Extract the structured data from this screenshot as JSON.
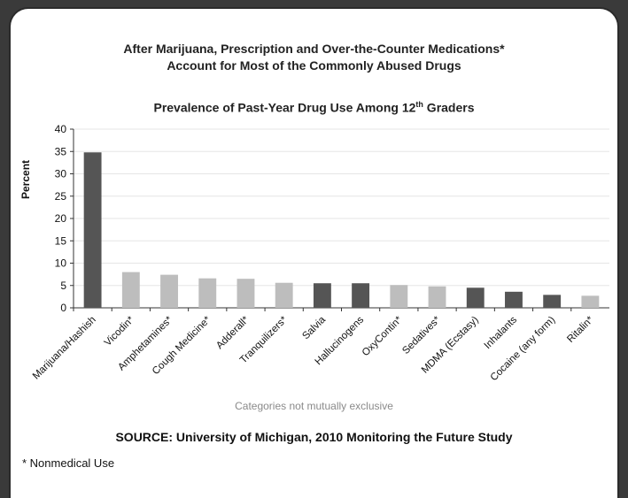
{
  "titles": {
    "line1": "After Marijuana, Prescription and Over-the-Counter Medications*",
    "line2": "Account for Most of the Commonly Abused Drugs",
    "subtitle_prefix": "Prevalence of Past-Year Drug Use Among 12",
    "subtitle_sup": "th",
    "subtitle_suffix": " Graders"
  },
  "note": "Categories not mutually exclusive",
  "source": "SOURCE: University of Michigan, 2010 Monitoring the Future Study",
  "footnote": "* Nonmedical Use",
  "colors": {
    "dark_bar": "#555555",
    "light_bar": "#bdbdbd",
    "grid": "#e6e6e6",
    "axis": "#333333"
  },
  "chart_data": {
    "type": "bar",
    "ylabel": "Percent",
    "ylim": [
      0,
      40
    ],
    "yticks": [
      0,
      5,
      10,
      15,
      20,
      25,
      30,
      35,
      40
    ],
    "grid": true,
    "categories": [
      "Marijuana/Hashish",
      "Vicodin*",
      "Amphetamines*",
      "Cough Medicine*",
      "Adderall*",
      "Tranquilizers*",
      "Salvia",
      "Hallucinogens",
      "OxyContin*",
      "Sedatives*",
      "MDMA (Ecstasy)",
      "Inhalants",
      "Cocaine (any form)",
      "Ritalin*"
    ],
    "values": [
      34.8,
      8.0,
      7.4,
      6.6,
      6.5,
      5.6,
      5.5,
      5.5,
      5.1,
      4.8,
      4.5,
      3.6,
      2.9,
      2.7
    ],
    "bar_shade": [
      "dark",
      "light",
      "light",
      "light",
      "light",
      "light",
      "dark",
      "dark",
      "light",
      "light",
      "dark",
      "dark",
      "dark",
      "light"
    ]
  }
}
